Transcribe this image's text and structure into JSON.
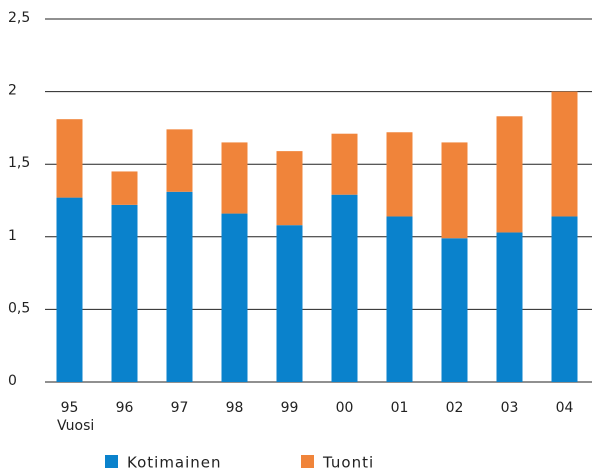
{
  "chart_data": {
    "type": "stacked_bar",
    "x_label": "Vuosi",
    "categories": [
      "95",
      "96",
      "97",
      "98",
      "99",
      "00",
      "01",
      "02",
      "03",
      "04"
    ],
    "series": [
      {
        "name": "Kotimainen",
        "color": "#0a82cc",
        "values": [
          1.27,
          1.22,
          1.31,
          1.16,
          1.08,
          1.29,
          1.14,
          0.99,
          1.03,
          1.14
        ]
      },
      {
        "name": "Tuonti",
        "color": "#f0843a",
        "values": [
          0.54,
          0.23,
          0.43,
          0.49,
          0.51,
          0.42,
          0.58,
          0.66,
          0.8,
          0.86
        ]
      }
    ],
    "ylim": [
      0,
      2.5
    ],
    "yticks": [
      0,
      {
        "value": 0.5,
        "label": "0,5"
      },
      1,
      {
        "value": 1.5,
        "label": "1,5"
      },
      2,
      {
        "value": 2.5,
        "label": "2,5"
      }
    ],
    "grid": true,
    "legend": "bottom"
  }
}
